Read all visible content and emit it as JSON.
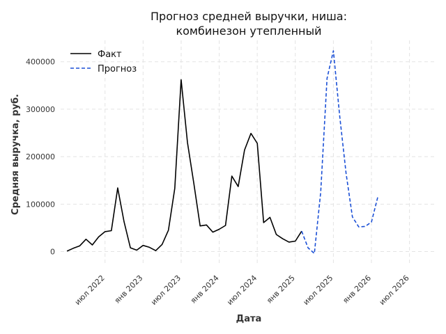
{
  "chart_data": {
    "type": "line",
    "title": [
      "Прогноз средней выручки, ниша:",
      "комбинезон утепленный"
    ],
    "xlabel": "Дата",
    "ylabel": "Средняя выручка, руб.",
    "x_ticks": [
      {
        "date": "2022-07",
        "label": "июл 2022"
      },
      {
        "date": "2023-01",
        "label": "янв 2023"
      },
      {
        "date": "2023-07",
        "label": "июл 2023"
      },
      {
        "date": "2024-01",
        "label": "янв 2024"
      },
      {
        "date": "2024-07",
        "label": "июл 2024"
      },
      {
        "date": "2025-01",
        "label": "янв 2025"
      },
      {
        "date": "2025-07",
        "label": "июл 2025"
      },
      {
        "date": "2026-01",
        "label": "янв 2026"
      },
      {
        "date": "2026-07",
        "label": "июл 2026"
      }
    ],
    "y_ticks": [
      0,
      100000,
      200000,
      300000,
      400000
    ],
    "y_tick_labels": [
      "0",
      "100000",
      "200000",
      "300000",
      "400000"
    ],
    "xlim": [
      "2021-12",
      "2026-11"
    ],
    "ylim": [
      -30000,
      445000
    ],
    "grid": true,
    "legend_position": "top-left",
    "colors": {
      "fact": "#000000",
      "forecast": "#1a4fd6",
      "grid": "#e3e3e3"
    },
    "series": [
      {
        "name": "Факт",
        "style": "solid",
        "color": "#000000",
        "points": [
          [
            "2022-01",
            1000
          ],
          [
            "2022-02",
            7000
          ],
          [
            "2022-03",
            12000
          ],
          [
            "2022-04",
            26000
          ],
          [
            "2022-05",
            14000
          ],
          [
            "2022-06",
            31000
          ],
          [
            "2022-07",
            42000
          ],
          [
            "2022-08",
            44000
          ],
          [
            "2022-09",
            134000
          ],
          [
            "2022-10",
            63000
          ],
          [
            "2022-11",
            8000
          ],
          [
            "2022-12",
            3000
          ],
          [
            "2023-01",
            13000
          ],
          [
            "2023-02",
            9000
          ],
          [
            "2023-03",
            2000
          ],
          [
            "2023-04",
            15000
          ],
          [
            "2023-05",
            45000
          ],
          [
            "2023-06",
            133000
          ],
          [
            "2023-07",
            362000
          ],
          [
            "2023-08",
            230000
          ],
          [
            "2023-09",
            144000
          ],
          [
            "2023-10",
            54000
          ],
          [
            "2023-11",
            56000
          ],
          [
            "2023-12",
            41000
          ],
          [
            "2024-01",
            47000
          ],
          [
            "2024-02",
            55000
          ],
          [
            "2024-03",
            159000
          ],
          [
            "2024-04",
            137000
          ],
          [
            "2024-05",
            214000
          ],
          [
            "2024-06",
            249000
          ],
          [
            "2024-07",
            228000
          ],
          [
            "2024-08",
            61000
          ],
          [
            "2024-09",
            72000
          ],
          [
            "2024-10",
            36000
          ],
          [
            "2024-11",
            27000
          ],
          [
            "2024-12",
            20000
          ],
          [
            "2025-01",
            22000
          ],
          [
            "2025-02",
            43000
          ]
        ]
      },
      {
        "name": "Прогноз",
        "style": "dashed",
        "color": "#1a4fd6",
        "points": [
          [
            "2025-02",
            43000
          ],
          [
            "2025-03",
            8000
          ],
          [
            "2025-04",
            -4000
          ],
          [
            "2025-05",
            125000
          ],
          [
            "2025-06",
            365000
          ],
          [
            "2025-07",
            423000
          ],
          [
            "2025-08",
            285000
          ],
          [
            "2025-09",
            165000
          ],
          [
            "2025-10",
            73000
          ],
          [
            "2025-11",
            52000
          ],
          [
            "2025-12",
            53000
          ],
          [
            "2026-01",
            62000
          ],
          [
            "2026-02",
            115000
          ]
        ]
      }
    ]
  }
}
